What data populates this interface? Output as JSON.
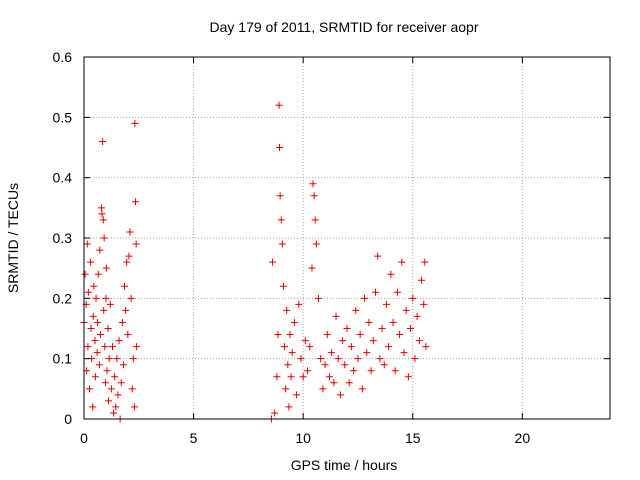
{
  "chart_data": {
    "type": "scatter",
    "title": "Day 179 of 2011, SRMTID for receiver aopr",
    "xlabel": "GPS time / hours",
    "ylabel": "SRMTID / TECUs",
    "xlim": [
      0,
      24
    ],
    "ylim": [
      0,
      0.6
    ],
    "x_ticks": [
      0,
      5,
      10,
      15,
      20
    ],
    "y_ticks": [
      0,
      0.1,
      0.2,
      0.3,
      0.4,
      0.5,
      0.6
    ],
    "x_tick_labels": [
      "0",
      "5",
      "10",
      "15",
      "20"
    ],
    "y_tick_labels": [
      "0",
      "0.1",
      "0.2",
      "0.3",
      "0.4",
      "0.5",
      "0.6"
    ],
    "grid": true,
    "marker": "+",
    "color": "#e00000",
    "series": [
      {
        "points": [
          [
            0.0,
            0.16
          ],
          [
            0.05,
            0.24
          ],
          [
            0.1,
            0.19
          ],
          [
            0.12,
            0.08
          ],
          [
            0.15,
            0.29
          ],
          [
            0.18,
            0.12
          ],
          [
            0.2,
            0.21
          ],
          [
            0.25,
            0.05
          ],
          [
            0.3,
            0.26
          ],
          [
            0.32,
            0.15
          ],
          [
            0.35,
            0.1
          ],
          [
            0.4,
            0.02
          ],
          [
            0.42,
            0.17
          ],
          [
            0.45,
            0.22
          ],
          [
            0.5,
            0.13
          ],
          [
            0.52,
            0.07
          ],
          [
            0.55,
            0.2
          ],
          [
            0.6,
            0.11
          ],
          [
            0.62,
            0.16
          ],
          [
            0.65,
            0.24
          ],
          [
            0.7,
            0.09
          ],
          [
            0.72,
            0.28
          ],
          [
            0.75,
            0.14
          ],
          [
            0.8,
            0.35
          ],
          [
            0.82,
            0.34
          ],
          [
            0.85,
            0.46
          ],
          [
            0.88,
            0.33
          ],
          [
            0.9,
            0.18
          ],
          [
            0.92,
            0.3
          ],
          [
            0.95,
            0.12
          ],
          [
            0.98,
            0.06
          ],
          [
            1.0,
            0.2
          ],
          [
            1.02,
            0.25
          ],
          [
            1.05,
            0.08
          ],
          [
            1.1,
            0.15
          ],
          [
            1.12,
            0.03
          ],
          [
            1.15,
            0.1
          ],
          [
            1.2,
            0.19
          ],
          [
            1.25,
            0.05
          ],
          [
            1.3,
            0.12
          ],
          [
            1.35,
            0.01
          ],
          [
            1.4,
            0.07
          ],
          [
            1.45,
            0.02
          ],
          [
            1.5,
            0.1
          ],
          [
            1.55,
            0.04
          ],
          [
            1.6,
            0.13
          ],
          [
            1.65,
            0.0
          ],
          [
            1.7,
            0.06
          ],
          [
            1.75,
            0.16
          ],
          [
            1.8,
            0.09
          ],
          [
            1.85,
            0.22
          ],
          [
            1.9,
            0.18
          ],
          [
            1.95,
            0.26
          ],
          [
            2.0,
            0.14
          ],
          [
            2.05,
            0.27
          ],
          [
            2.1,
            0.31
          ],
          [
            2.15,
            0.2
          ],
          [
            2.2,
            0.05
          ],
          [
            2.25,
            0.1
          ],
          [
            2.3,
            0.02
          ],
          [
            2.32,
            0.49
          ],
          [
            2.35,
            0.36
          ],
          [
            2.38,
            0.29
          ],
          [
            2.4,
            0.12
          ],
          [
            8.55,
            0.0
          ],
          [
            8.6,
            0.26
          ],
          [
            8.7,
            0.01
          ],
          [
            8.8,
            0.07
          ],
          [
            8.85,
            0.14
          ],
          [
            8.9,
            0.52
          ],
          [
            8.92,
            0.45
          ],
          [
            8.95,
            0.37
          ],
          [
            9.0,
            0.33
          ],
          [
            9.05,
            0.29
          ],
          [
            9.1,
            0.22
          ],
          [
            9.15,
            0.12
          ],
          [
            9.2,
            0.05
          ],
          [
            9.25,
            0.18
          ],
          [
            9.3,
            0.09
          ],
          [
            9.35,
            0.02
          ],
          [
            9.4,
            0.14
          ],
          [
            9.45,
            0.07
          ],
          [
            9.5,
            0.11
          ],
          [
            9.6,
            0.16
          ],
          [
            9.7,
            0.04
          ],
          [
            9.8,
            0.19
          ],
          [
            9.9,
            0.1
          ],
          [
            10.0,
            0.07
          ],
          [
            10.1,
            0.13
          ],
          [
            10.2,
            0.08
          ],
          [
            10.3,
            0.12
          ],
          [
            10.4,
            0.25
          ],
          [
            10.45,
            0.39
          ],
          [
            10.5,
            0.37
          ],
          [
            10.55,
            0.33
          ],
          [
            10.6,
            0.29
          ],
          [
            10.7,
            0.2
          ],
          [
            10.8,
            0.1
          ],
          [
            10.9,
            0.05
          ],
          [
            11.0,
            0.09
          ],
          [
            11.1,
            0.14
          ],
          [
            11.2,
            0.07
          ],
          [
            11.3,
            0.11
          ],
          [
            11.4,
            0.06
          ],
          [
            11.5,
            0.17
          ],
          [
            11.6,
            0.1
          ],
          [
            11.7,
            0.04
          ],
          [
            11.8,
            0.13
          ],
          [
            11.9,
            0.09
          ],
          [
            12.0,
            0.15
          ],
          [
            12.1,
            0.06
          ],
          [
            12.2,
            0.12
          ],
          [
            12.3,
            0.08
          ],
          [
            12.4,
            0.18
          ],
          [
            12.5,
            0.1
          ],
          [
            12.6,
            0.14
          ],
          [
            12.7,
            0.05
          ],
          [
            12.8,
            0.2
          ],
          [
            12.9,
            0.11
          ],
          [
            13.0,
            0.16
          ],
          [
            13.1,
            0.08
          ],
          [
            13.2,
            0.13
          ],
          [
            13.3,
            0.21
          ],
          [
            13.4,
            0.27
          ],
          [
            13.5,
            0.1
          ],
          [
            13.6,
            0.15
          ],
          [
            13.7,
            0.09
          ],
          [
            13.8,
            0.19
          ],
          [
            13.9,
            0.12
          ],
          [
            14.0,
            0.24
          ],
          [
            14.1,
            0.16
          ],
          [
            14.2,
            0.08
          ],
          [
            14.3,
            0.21
          ],
          [
            14.4,
            0.14
          ],
          [
            14.5,
            0.26
          ],
          [
            14.6,
            0.11
          ],
          [
            14.7,
            0.18
          ],
          [
            14.8,
            0.07
          ],
          [
            14.9,
            0.15
          ],
          [
            15.0,
            0.2
          ],
          [
            15.1,
            0.1
          ],
          [
            15.2,
            0.17
          ],
          [
            15.3,
            0.13
          ],
          [
            15.4,
            0.23
          ],
          [
            15.5,
            0.19
          ],
          [
            15.55,
            0.26
          ],
          [
            15.6,
            0.12
          ]
        ]
      }
    ]
  }
}
